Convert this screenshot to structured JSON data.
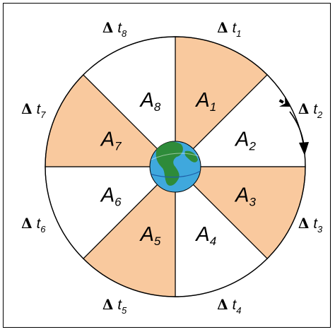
{
  "colors": {
    "shaded": "#F9C99E",
    "unshaded": "#FFFFFF",
    "stroke": "#000000",
    "ocean": "#3FA8DD",
    "land": "#2E8B3A"
  },
  "sectors": [
    {
      "letter": "A",
      "sub": "1",
      "shaded": true
    },
    {
      "letter": "A",
      "sub": "2",
      "shaded": false
    },
    {
      "letter": "A",
      "sub": "3",
      "shaded": true
    },
    {
      "letter": "A",
      "sub": "4",
      "shaded": false
    },
    {
      "letter": "A",
      "sub": "5",
      "shaded": true
    },
    {
      "letter": "A",
      "sub": "6",
      "shaded": false
    },
    {
      "letter": "A",
      "sub": "7",
      "shaded": true
    },
    {
      "letter": "A",
      "sub": "8",
      "shaded": false
    }
  ],
  "time_labels": [
    {
      "delta": "Δ",
      "t": "t",
      "sub": "1"
    },
    {
      "delta": "Δ",
      "t": "t",
      "sub": "2"
    },
    {
      "delta": "Δ",
      "t": "t",
      "sub": "3"
    },
    {
      "delta": "Δ",
      "t": "t",
      "sub": "4"
    },
    {
      "delta": "Δ",
      "t": "t",
      "sub": "5"
    },
    {
      "delta": "Δ",
      "t": "t",
      "sub": "6"
    },
    {
      "delta": "Δ",
      "t": "t",
      "sub": "7"
    },
    {
      "delta": "Δ",
      "t": "t",
      "sub": "8"
    }
  ],
  "icons": {
    "planet": "earth-icon",
    "satellite": "satellite-icon",
    "motion": "orbit-direction-arrow-icon"
  }
}
